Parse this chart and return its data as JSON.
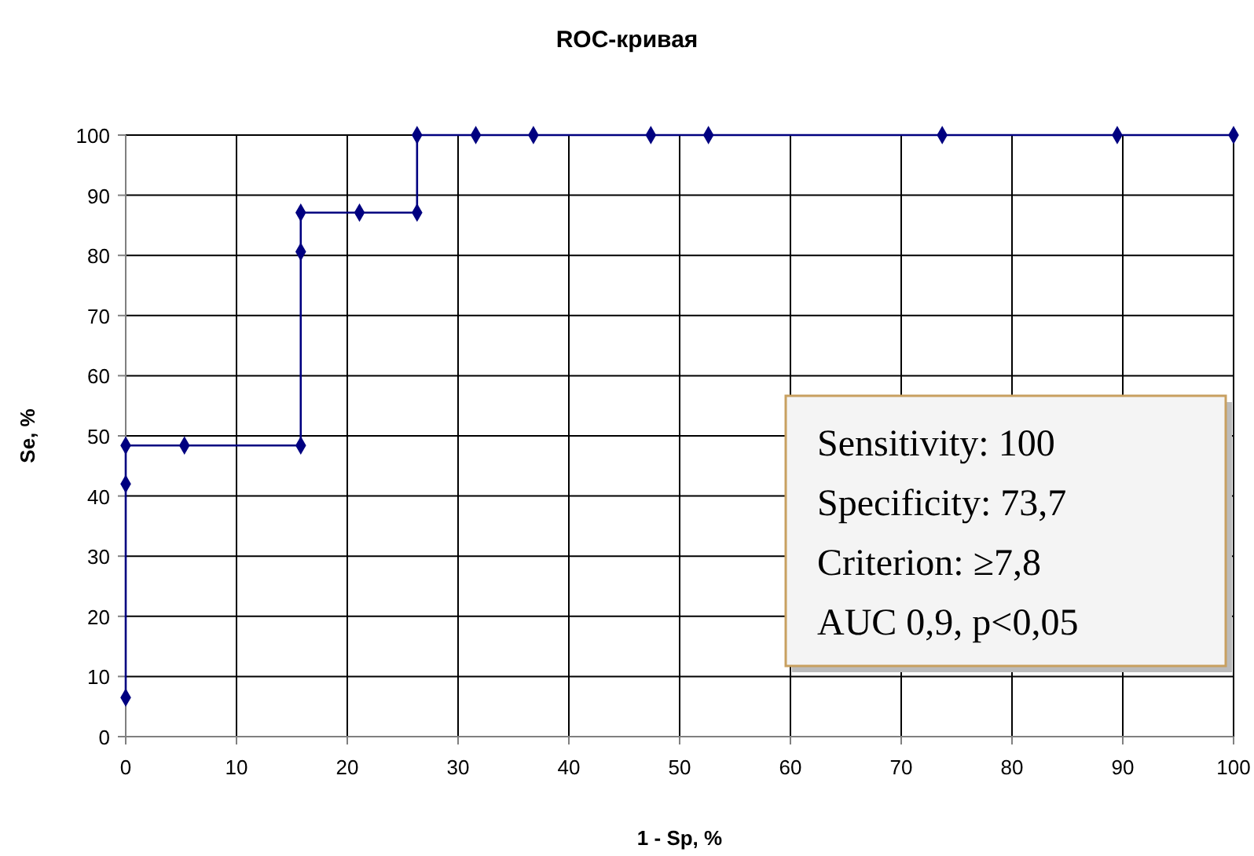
{
  "chart_data": {
    "type": "line",
    "title": "ROC-кривая",
    "xlabel": "1 - Sp, %",
    "ylabel": "Se, %",
    "x": [
      0,
      0,
      0,
      5.3,
      15.8,
      15.8,
      15.8,
      21.1,
      26.3,
      26.3,
      31.6,
      36.8,
      47.4,
      52.6,
      73.7,
      89.5,
      100
    ],
    "series": [
      {
        "color": "#000080",
        "values": [
          6.5,
          42,
          48.4,
          48.4,
          48.4,
          80.6,
          87.1,
          87.1,
          87.1,
          100,
          100,
          100,
          100,
          100,
          100,
          100,
          100
        ]
      }
    ],
    "xlim": [
      0,
      100
    ],
    "xticks": [
      0,
      10,
      20,
      30,
      40,
      50,
      60,
      70,
      80,
      90,
      100
    ],
    "ylim": [
      0,
      100
    ],
    "yticks": [
      0,
      10,
      20,
      30,
      40,
      50,
      60,
      70,
      80,
      90,
      100
    ],
    "grid": true,
    "marker": "diamond",
    "line_style": "solid",
    "annotations": [
      "Sensitivity: 100",
      "Specificity: 73,7",
      "Criterion: ≥7,8",
      "AUC 0,9, p<0,05"
    ]
  }
}
